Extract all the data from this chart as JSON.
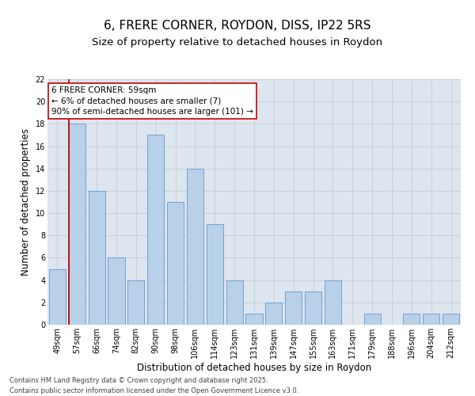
{
  "title1": "6, FRERE CORNER, ROYDON, DISS, IP22 5RS",
  "title2": "Size of property relative to detached houses in Roydon",
  "xlabel": "Distribution of detached houses by size in Roydon",
  "ylabel": "Number of detached properties",
  "categories": [
    "49sqm",
    "57sqm",
    "66sqm",
    "74sqm",
    "82sqm",
    "90sqm",
    "98sqm",
    "106sqm",
    "114sqm",
    "123sqm",
    "131sqm",
    "139sqm",
    "147sqm",
    "155sqm",
    "163sqm",
    "171sqm",
    "179sqm",
    "188sqm",
    "196sqm",
    "204sqm",
    "212sqm"
  ],
  "values": [
    5,
    18,
    12,
    6,
    4,
    17,
    11,
    14,
    9,
    4,
    1,
    2,
    3,
    3,
    4,
    0,
    1,
    0,
    1,
    1,
    1
  ],
  "bar_color": "#b8d0e8",
  "bar_edge_color": "#6699cc",
  "bar_width": 0.85,
  "ylim": [
    0,
    22
  ],
  "yticks": [
    0,
    2,
    4,
    6,
    8,
    10,
    12,
    14,
    16,
    18,
    20,
    22
  ],
  "grid_color": "#c8d0dc",
  "bg_color": "#dde5ef",
  "annotation_text": "6 FRERE CORNER: 59sqm\n← 6% of detached houses are smaller (7)\n90% of semi-detached houses are larger (101) →",
  "annotation_box_color": "#ffffff",
  "annotation_box_edge": "#cc0000",
  "vline_color": "#cc0000",
  "vline_x_index": 1,
  "footer": "Contains HM Land Registry data © Crown copyright and database right 2025.\nContains public sector information licensed under the Open Government Licence v3.0.",
  "title1_fontsize": 11,
  "title2_fontsize": 9.5,
  "axis_label_fontsize": 8.5,
  "tick_fontsize": 7,
  "annot_fontsize": 7.5,
  "footer_fontsize": 6
}
